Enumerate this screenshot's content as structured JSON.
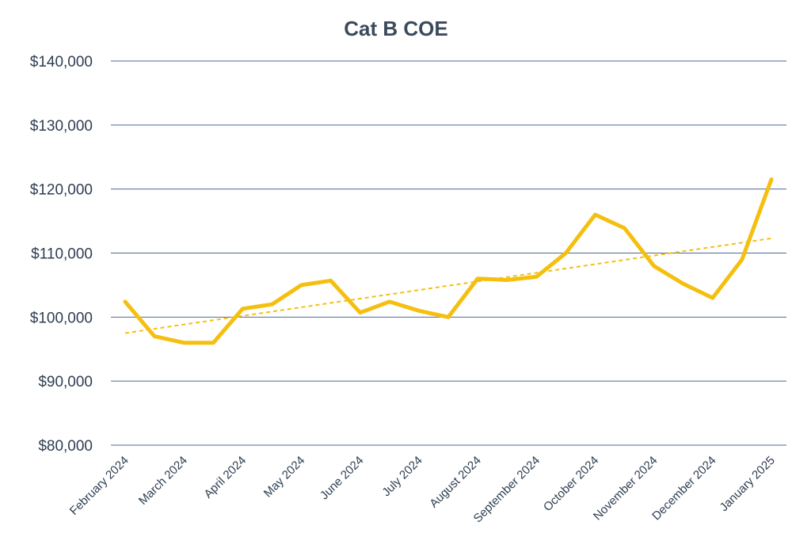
{
  "chart_data": {
    "type": "line",
    "title": "Cat B COE",
    "xlabel": "",
    "ylabel": "",
    "x_tick_labels": [
      "February 2024",
      "March 2024",
      "April 2024",
      "May 2024",
      "June 2024",
      "July 2024",
      "August 2024",
      "September 2024",
      "October 2024",
      "November 2024",
      "December 2024",
      "January 2025"
    ],
    "y_tick_labels": [
      "$80,000",
      "$90,000",
      "$100,000",
      "$110,000",
      "$120,000",
      "$130,000",
      "$140,000"
    ],
    "y_ticks": [
      80000,
      90000,
      100000,
      110000,
      120000,
      130000,
      140000
    ],
    "ylim": [
      80000,
      140000
    ],
    "grid": true,
    "series": [
      {
        "color": "#f5bf10",
        "values": [
          102400,
          97000,
          96000,
          96000,
          101300,
          102000,
          105000,
          105700,
          100700,
          102400,
          101000,
          100000,
          106000,
          105800,
          106300,
          110000,
          116000,
          113900,
          108000,
          105200,
          103000,
          109000,
          121500
        ]
      }
    ],
    "trendline": {
      "style": "dashed",
      "color": "#f5bf10",
      "start": 97500,
      "end": 112300
    }
  }
}
